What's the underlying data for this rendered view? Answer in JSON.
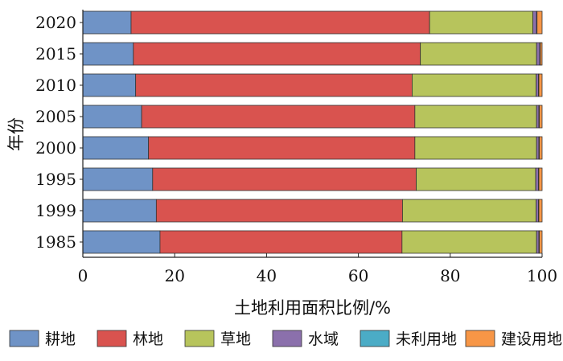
{
  "chart_data": {
    "type": "bar",
    "orientation": "horizontal",
    "stacked": true,
    "title": "",
    "xlabel": "土地利用面积比例/%",
    "ylabel": "年份",
    "xlim": [
      0,
      100
    ],
    "xticks": [
      0,
      20,
      40,
      60,
      80,
      100
    ],
    "grid": false,
    "legend_position": "bottom",
    "categories": [
      "2020",
      "2015",
      "2010",
      "2005",
      "2000",
      "1995",
      "1999",
      "1985"
    ],
    "series": [
      {
        "name": "耕地",
        "color": "#6f93c6",
        "values": [
          10.5,
          11.0,
          11.5,
          12.8,
          14.3,
          15.2,
          16.0,
          16.8
        ]
      },
      {
        "name": "林地",
        "color": "#d9534f",
        "values": [
          65.0,
          62.5,
          60.2,
          59.5,
          58.0,
          57.4,
          53.6,
          52.7
        ]
      },
      {
        "name": "草地",
        "color": "#b7c45c",
        "values": [
          22.5,
          25.3,
          27.0,
          26.5,
          26.5,
          26.0,
          29.1,
          29.3
        ]
      },
      {
        "name": "水域",
        "color": "#8b70ac",
        "values": [
          0.8,
          0.7,
          0.5,
          0.5,
          0.5,
          0.6,
          0.5,
          0.5
        ]
      },
      {
        "name": "未利用地",
        "color": "#4bacc6",
        "values": [
          0.1,
          0.1,
          0.1,
          0.1,
          0.1,
          0.1,
          0.1,
          0.1
        ]
      },
      {
        "name": "建设用地",
        "color": "#f79646",
        "values": [
          1.1,
          0.4,
          0.7,
          0.6,
          0.6,
          0.7,
          0.7,
          0.6
        ]
      }
    ]
  }
}
